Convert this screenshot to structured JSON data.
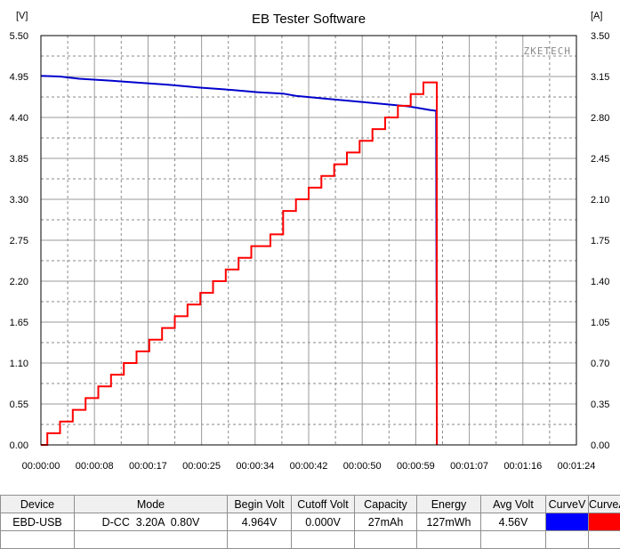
{
  "chart_data": {
    "type": "line",
    "title": "EB Tester Software",
    "watermark": "ZKETECH",
    "y_left_unit": "[V]",
    "y_right_unit": "[A]",
    "y_left_ticks": [
      "5.50",
      "4.95",
      "4.40",
      "3.85",
      "3.30",
      "2.75",
      "2.20",
      "1.65",
      "1.10",
      "0.55",
      "0.00"
    ],
    "y_right_ticks": [
      "3.50",
      "3.15",
      "2.80",
      "2.45",
      "2.10",
      "1.75",
      "1.40",
      "1.05",
      "0.70",
      "0.35",
      "0.00"
    ],
    "x_ticks": [
      "00:00:00",
      "00:00:08",
      "00:00:17",
      "00:00:25",
      "00:00:34",
      "00:00:42",
      "00:00:50",
      "00:00:59",
      "00:01:07",
      "00:01:16",
      "00:01:24"
    ],
    "xlim_seconds": [
      0,
      84
    ],
    "ylim_left": [
      0,
      5.5
    ],
    "ylim_right": [
      0,
      3.5
    ],
    "grid": true,
    "series": [
      {
        "axis": "left",
        "color": "#0000cc",
        "x": [
          0,
          3,
          6,
          10,
          15,
          20,
          25,
          30,
          34,
          38,
          40,
          45,
          50,
          55,
          57.6,
          59,
          61,
          62,
          62.1
        ],
        "y": [
          4.96,
          4.95,
          4.92,
          4.9,
          4.87,
          4.84,
          4.8,
          4.77,
          4.74,
          4.72,
          4.69,
          4.65,
          4.61,
          4.57,
          4.55,
          4.53,
          4.5,
          4.49,
          0.0
        ]
      },
      {
        "axis": "right",
        "color": "#ff0000",
        "step": true,
        "x": [
          0,
          1,
          3,
          5,
          7,
          9,
          11,
          13,
          15,
          17,
          19,
          21,
          23,
          25,
          27,
          29,
          31,
          33,
          36,
          38,
          40,
          42,
          44,
          46,
          48,
          50,
          52,
          54,
          56,
          58,
          60,
          62,
          62.1
        ],
        "y": [
          0.0,
          0.1,
          0.2,
          0.3,
          0.4,
          0.5,
          0.6,
          0.7,
          0.8,
          0.9,
          1.0,
          1.1,
          1.2,
          1.3,
          1.4,
          1.5,
          1.6,
          1.7,
          1.8,
          2.0,
          2.1,
          2.2,
          2.3,
          2.4,
          2.5,
          2.6,
          2.7,
          2.8,
          2.9,
          3.0,
          3.1,
          3.1,
          0.0
        ]
      }
    ]
  },
  "summary": {
    "headers": [
      "Device",
      "Mode",
      "Begin Volt",
      "Cutoff Volt",
      "Capacity",
      "Energy",
      "Avg Volt",
      "CurveV",
      "CurveA"
    ],
    "row": {
      "device": "EBD-USB",
      "mode": "D-CC  3.20A  0.80V",
      "begin_volt": "4.964V",
      "cutoff_volt": "0.000V",
      "capacity": "27mAh",
      "energy": "127mWh",
      "avg_volt": "4.56V"
    },
    "curve_v_color": "#0000ff",
    "curve_a_color": "#ff0000"
  }
}
